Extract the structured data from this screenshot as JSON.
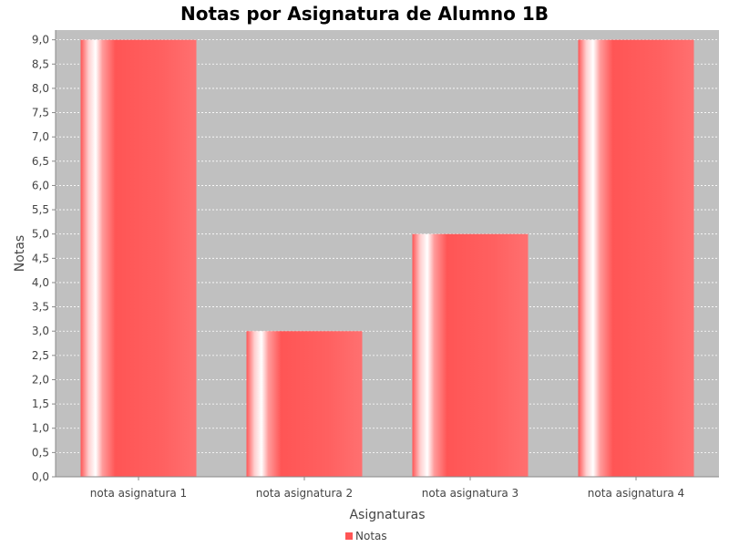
{
  "chart_data": {
    "type": "bar",
    "title": "Notas por Asignatura de Alumno 1B",
    "xlabel": "Asignaturas",
    "ylabel": "Notas",
    "categories": [
      "nota asignatura 1",
      "nota asignatura 2",
      "nota asignatura 3",
      "nota asignatura 4"
    ],
    "series": [
      {
        "name": "Notas",
        "values": [
          9.0,
          3.0,
          5.0,
          9.0
        ],
        "color": "#ff5555"
      }
    ],
    "ylim": [
      0,
      9.2
    ],
    "yticks": [
      "0,0",
      "0,5",
      "1,0",
      "1,5",
      "2,0",
      "2,5",
      "3,0",
      "3,5",
      "4,0",
      "4,5",
      "5,0",
      "5,5",
      "6,0",
      "6,5",
      "7,0",
      "7,5",
      "8,0",
      "8,5",
      "9,0"
    ],
    "ytick_values": [
      0,
      0.5,
      1,
      1.5,
      2,
      2.5,
      3,
      3.5,
      4,
      4.5,
      5,
      5.5,
      6,
      6.5,
      7,
      7.5,
      8,
      8.5,
      9
    ],
    "grid": true,
    "legend_position": "bottom",
    "plot_background": "#c0c0c0",
    "grid_color": "#ffffff"
  }
}
